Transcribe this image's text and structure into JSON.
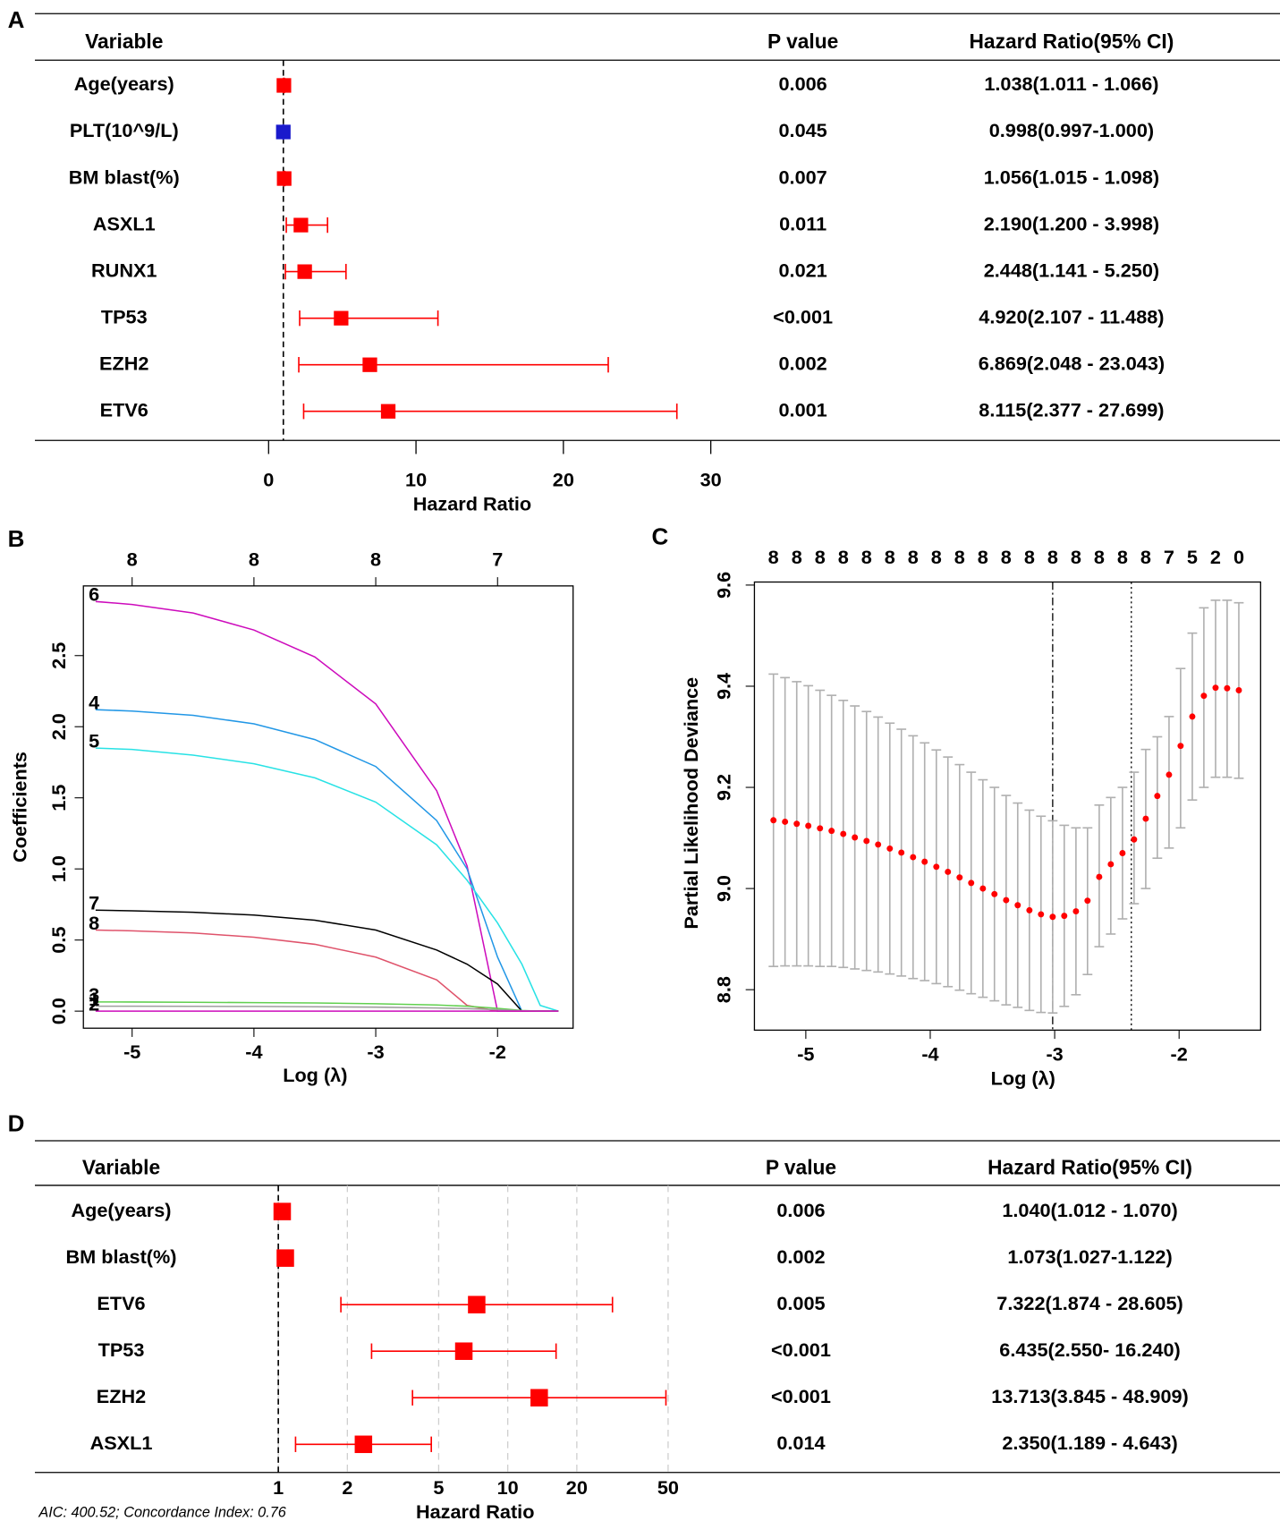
{
  "chart_data": [
    {
      "type": "forest",
      "label": "A",
      "headers": [
        "Variable",
        "P value",
        "Hazard Ratio(95% CI)"
      ],
      "categories": [
        "Age(years)",
        "PLT(10^9/L)",
        "BM blast(%)",
        "ASXL1",
        "RUNX1",
        "TP53",
        "EZH2",
        "ETV6"
      ],
      "p_values": [
        "0.006",
        "0.045",
        "0.007",
        "0.011",
        "0.021",
        "<0.001",
        "0.002",
        "0.001"
      ],
      "values": [
        1.038,
        0.998,
        1.056,
        2.19,
        2.448,
        4.92,
        6.869,
        8.115
      ],
      "lower": [
        1.011,
        0.997,
        1.015,
        1.2,
        1.141,
        2.107,
        2.048,
        2.377
      ],
      "upper": [
        1.066,
        1.0,
        1.098,
        3.998,
        5.25,
        11.488,
        23.043,
        27.699
      ],
      "value_labels": [
        "1.038(1.011 - 1.066)",
        "0.998(0.997-1.000)",
        "1.056(1.015 - 1.098)",
        "2.190(1.200 - 3.998)",
        "2.448(1.141 - 5.250)",
        "4.920(2.107 - 11.488)",
        "6.869(2.048 - 23.043)",
        "8.115(2.377 - 27.699)"
      ],
      "colors": [
        "#ff0000",
        "#1a1acc",
        "#ff0000",
        "#ff0000",
        "#ff0000",
        "#ff0000",
        "#ff0000",
        "#ff0000"
      ],
      "ref_line": 1,
      "xlim": [
        0,
        30
      ],
      "xticks": [
        0,
        10,
        20,
        30
      ],
      "xlabel": "Hazard Ratio"
    },
    {
      "type": "line",
      "label": "B",
      "xlabel": "Log (λ)",
      "ylabel": "Coefficients",
      "xlim": [
        -5.4,
        -1.38
      ],
      "ylim": [
        -0.12,
        2.99
      ],
      "xticks": [
        -5,
        -4,
        -3,
        -2
      ],
      "x2ticks": [
        {
          "value": -5,
          "label": "8"
        },
        {
          "value": -4,
          "label": "8"
        },
        {
          "value": -3,
          "label": "8"
        },
        {
          "value": -2,
          "label": "7"
        }
      ],
      "yticks": [
        {
          "value": 0,
          "label": "0.0"
        },
        0.5,
        {
          "value": 1,
          "label": "1.0"
        },
        1.5,
        {
          "value": 2,
          "label": "2.0"
        },
        2.5
      ],
      "x": [
        -5.3,
        -5.0,
        -4.5,
        -4.0,
        -3.5,
        -3.0,
        -2.5,
        -2.25,
        -2.0,
        -1.8,
        -1.65,
        -1.5
      ],
      "series": [
        {
          "name": "6",
          "color": "#cd0bbc",
          "values": [
            2.88,
            2.86,
            2.8,
            2.68,
            2.49,
            2.16,
            1.55,
            1.02,
            0,
            0,
            0,
            0
          ]
        },
        {
          "name": "4",
          "color": "#2297e6",
          "values": [
            2.12,
            2.11,
            2.08,
            2.02,
            1.91,
            1.72,
            1.34,
            1.0,
            0.38,
            0,
            0,
            0
          ]
        },
        {
          "name": "5",
          "color": "#28e2e5",
          "values": [
            1.85,
            1.84,
            1.8,
            1.74,
            1.64,
            1.47,
            1.17,
            0.92,
            0.62,
            0.33,
            0.04,
            0
          ]
        },
        {
          "name": "7",
          "color": "#000000",
          "values": [
            0.71,
            0.705,
            0.695,
            0.675,
            0.64,
            0.57,
            0.43,
            0.33,
            0.19,
            0,
            0,
            0
          ]
        },
        {
          "name": "8",
          "color": "#df536b",
          "values": [
            0.57,
            0.565,
            0.55,
            0.52,
            0.47,
            0.38,
            0.22,
            0.04,
            0,
            0,
            0,
            0
          ]
        },
        {
          "name": "3",
          "color": "#61d04f",
          "values": [
            0.065,
            0.064,
            0.062,
            0.06,
            0.057,
            0.052,
            0.043,
            0.035,
            0.02,
            0.005,
            0,
            0
          ]
        },
        {
          "name": "1",
          "color": "#9e9e9e",
          "values": [
            0.035,
            0.035,
            0.034,
            0.033,
            0.031,
            0.028,
            0.022,
            0.018,
            0.01,
            0.003,
            0,
            0
          ]
        },
        {
          "name": "2",
          "color": "#cd0bbc",
          "values": [
            0,
            0,
            0,
            0,
            0,
            0,
            0,
            0,
            0,
            0,
            0,
            0
          ]
        }
      ]
    },
    {
      "type": "errorbar",
      "label": "C",
      "xlabel": "Log (λ)",
      "ylabel": "Partial Likelihood Deviance",
      "xlim": [
        -5.413,
        -1.345
      ],
      "ylim": [
        8.72,
        9.606
      ],
      "xticks": [
        -5,
        -4,
        -3,
        -2
      ],
      "yticks": [
        8.8,
        {
          "value": 9,
          "label": "9.0"
        },
        9.2,
        9.4,
        9.6
      ],
      "x2ticks": [
        {
          "value": -5.26,
          "label": "8"
        },
        {
          "value": -5.073,
          "label": "8"
        },
        {
          "value": -4.886,
          "label": "8"
        },
        {
          "value": -4.699,
          "label": "8"
        },
        {
          "value": -4.512,
          "label": "8"
        },
        {
          "value": -4.325,
          "label": "8"
        },
        {
          "value": -4.138,
          "label": "8"
        },
        {
          "value": -3.951,
          "label": "8"
        },
        {
          "value": -3.764,
          "label": "8"
        },
        {
          "value": -3.577,
          "label": "8"
        },
        {
          "value": -3.39,
          "label": "8"
        },
        {
          "value": -3.203,
          "label": "8"
        },
        {
          "value": -3.016,
          "label": "8"
        },
        {
          "value": -2.829,
          "label": "8"
        },
        {
          "value": -2.642,
          "label": "8"
        },
        {
          "value": -2.455,
          "label": "8"
        },
        {
          "value": -2.268,
          "label": "8"
        },
        {
          "value": -2.081,
          "label": "7"
        },
        {
          "value": -1.894,
          "label": "5"
        },
        {
          "value": -1.707,
          "label": "2"
        },
        {
          "value": -1.52,
          "label": "0"
        }
      ],
      "x": [
        -5.26,
        -5.167,
        -5.073,
        -4.98,
        -4.886,
        -4.793,
        -4.699,
        -4.606,
        -4.512,
        -4.419,
        -4.325,
        -4.232,
        -4.138,
        -4.045,
        -3.951,
        -3.858,
        -3.764,
        -3.671,
        -3.577,
        -3.484,
        -3.39,
        -3.297,
        -3.203,
        -3.11,
        -3.016,
        -2.923,
        -2.829,
        -2.736,
        -2.642,
        -2.549,
        -2.455,
        -2.362,
        -2.268,
        -2.175,
        -2.081,
        -1.988,
        -1.894,
        -1.801,
        -1.707,
        -1.614,
        -1.52
      ],
      "values": [
        9.135,
        9.132,
        9.128,
        9.124,
        9.119,
        9.114,
        9.108,
        9.101,
        9.094,
        9.087,
        9.079,
        9.071,
        9.062,
        9.053,
        9.043,
        9.033,
        9.022,
        9.011,
        9.0,
        8.989,
        8.977,
        8.967,
        8.957,
        8.949,
        8.944,
        8.946,
        8.955,
        8.976,
        9.023,
        9.048,
        9.07,
        9.097,
        9.138,
        9.183,
        9.225,
        9.282,
        9.34,
        9.381,
        9.397,
        9.396,
        9.392
      ],
      "upper": [
        9.424,
        9.417,
        9.409,
        9.401,
        9.392,
        9.382,
        9.372,
        9.361,
        9.35,
        9.339,
        9.327,
        9.315,
        9.302,
        9.288,
        9.274,
        9.26,
        9.245,
        9.23,
        9.215,
        9.2,
        9.184,
        9.169,
        9.155,
        9.143,
        9.134,
        9.125,
        9.12,
        9.12,
        9.165,
        9.18,
        9.2,
        9.23,
        9.275,
        9.3,
        9.34,
        9.435,
        9.505,
        9.555,
        9.57,
        9.57,
        9.565
      ],
      "lower": [
        8.846,
        8.847,
        8.847,
        8.847,
        8.846,
        8.846,
        8.844,
        8.841,
        8.838,
        8.835,
        8.831,
        8.827,
        8.822,
        8.818,
        8.812,
        8.806,
        8.799,
        8.792,
        8.785,
        8.778,
        8.77,
        8.765,
        8.759,
        8.755,
        8.754,
        8.767,
        8.79,
        8.83,
        8.885,
        8.91,
        8.94,
        8.97,
        9.0,
        9.06,
        9.08,
        9.12,
        9.175,
        9.2,
        9.22,
        9.22,
        9.218
      ],
      "color": "#ff0000",
      "bar_color": "#b0b0b0",
      "vlines": [
        {
          "value": -3.016,
          "style": "dashdot"
        },
        {
          "value": -2.384,
          "style": "dotted"
        }
      ]
    },
    {
      "type": "forest",
      "label": "D",
      "headers": [
        "Variable",
        "P value",
        "Hazard Ratio(95% CI)"
      ],
      "categories": [
        "Age(years)",
        "BM blast(%)",
        "ETV6",
        "TP53",
        "EZH2",
        "ASXL1"
      ],
      "p_values": [
        "0.006",
        "0.002",
        "0.005",
        "<0.001",
        "<0.001",
        "0.014"
      ],
      "values": [
        1.04,
        1.073,
        7.322,
        6.435,
        13.713,
        2.35
      ],
      "lower": [
        1.012,
        1.027,
        1.874,
        2.55,
        3.845,
        1.189
      ],
      "upper": [
        1.07,
        1.122,
        28.605,
        16.24,
        48.909,
        4.643
      ],
      "value_labels": [
        "1.040(1.012 - 1.070)",
        "1.073(1.027-1.122)",
        "7.322(1.874 - 28.605)",
        "6.435(2.550- 16.240)",
        "13.713(3.845 - 48.909)",
        "2.350(1.189 - 4.643)"
      ],
      "colors": [
        "#ff0000",
        "#ff0000",
        "#ff0000",
        "#ff0000",
        "#ff0000",
        "#ff0000"
      ],
      "ref_line": 1,
      "xscale": "log",
      "grid": true,
      "xlim": [
        1,
        50
      ],
      "xticks": [
        1,
        2,
        5,
        10,
        20,
        50
      ],
      "xlabel": "Hazard Ratio",
      "note": "AIC: 400.52; Concordance Index: 0.76"
    }
  ]
}
